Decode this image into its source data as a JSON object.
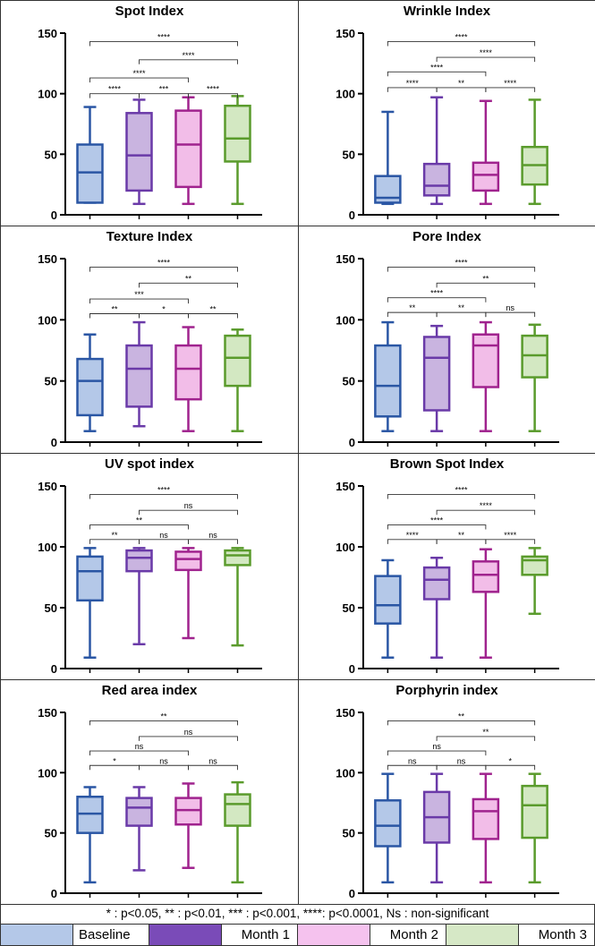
{
  "colors": {
    "baseline": {
      "stroke": "#2a56a4",
      "fill": "#b4c8e8"
    },
    "month1": {
      "stroke": "#6a3aa8",
      "fill": "#c9b4e0"
    },
    "month2": {
      "stroke": "#a0238e",
      "fill": "#f2bde8"
    },
    "month3": {
      "stroke": "#5a9b2c",
      "fill": "#d3e8c2"
    }
  },
  "chart_data": [
    {
      "type": "box",
      "title": "Spot Index",
      "ylim": [
        0,
        150
      ],
      "yticks": [
        0,
        50,
        100,
        150
      ],
      "groups": [
        "Baseline",
        "Month 1",
        "Month 2",
        "Month 3"
      ],
      "boxes": [
        {
          "min": 10,
          "q1": 10,
          "median": 35,
          "q3": 58,
          "max": 89
        },
        {
          "min": 9,
          "q1": 20,
          "median": 49,
          "q3": 84,
          "max": 95
        },
        {
          "min": 9,
          "q1": 23,
          "median": 58,
          "q3": 86,
          "max": 97
        },
        {
          "min": 9,
          "q1": 44,
          "median": 63,
          "q3": 90,
          "max": 98
        }
      ],
      "comparisons": [
        {
          "a": 0,
          "b": 3,
          "y": 143,
          "label": "****"
        },
        {
          "a": 1,
          "b": 3,
          "y": 128,
          "label": "****"
        },
        {
          "a": 0,
          "b": 2,
          "y": 113,
          "label": "****"
        },
        {
          "a": 0,
          "b": 1,
          "y": 100,
          "label": "****"
        },
        {
          "a": 1,
          "b": 2,
          "y": 100,
          "label": "***"
        },
        {
          "a": 2,
          "b": 3,
          "y": 100,
          "label": "****"
        }
      ]
    },
    {
      "type": "box",
      "title": "Wrinkle Index",
      "ylim": [
        0,
        150
      ],
      "yticks": [
        0,
        50,
        100,
        150
      ],
      "groups": [
        "Baseline",
        "Month 1",
        "Month 2",
        "Month 3"
      ],
      "boxes": [
        {
          "min": 9,
          "q1": 10,
          "median": 14,
          "q3": 32,
          "max": 85
        },
        {
          "min": 9,
          "q1": 16,
          "median": 24,
          "q3": 42,
          "max": 97
        },
        {
          "min": 9,
          "q1": 20,
          "median": 33,
          "q3": 43,
          "max": 94
        },
        {
          "min": 9,
          "q1": 25,
          "median": 41,
          "q3": 56,
          "max": 95
        }
      ],
      "comparisons": [
        {
          "a": 0,
          "b": 3,
          "y": 143,
          "label": "****"
        },
        {
          "a": 1,
          "b": 3,
          "y": 130,
          "label": "****"
        },
        {
          "a": 0,
          "b": 2,
          "y": 118,
          "label": "****"
        },
        {
          "a": 0,
          "b": 1,
          "y": 105,
          "label": "****"
        },
        {
          "a": 1,
          "b": 2,
          "y": 105,
          "label": "**"
        },
        {
          "a": 2,
          "b": 3,
          "y": 105,
          "label": "****"
        }
      ]
    },
    {
      "type": "box",
      "title": "Texture Index",
      "ylim": [
        0,
        150
      ],
      "yticks": [
        0,
        50,
        100,
        150
      ],
      "groups": [
        "Baseline",
        "Month 1",
        "Month 2",
        "Month 3"
      ],
      "boxes": [
        {
          "min": 9,
          "q1": 22,
          "median": 50,
          "q3": 68,
          "max": 88
        },
        {
          "min": 13,
          "q1": 29,
          "median": 60,
          "q3": 79,
          "max": 98
        },
        {
          "min": 9,
          "q1": 35,
          "median": 60,
          "q3": 79,
          "max": 94
        },
        {
          "min": 9,
          "q1": 46,
          "median": 69,
          "q3": 87,
          "max": 92
        }
      ],
      "comparisons": [
        {
          "a": 0,
          "b": 3,
          "y": 143,
          "label": "****"
        },
        {
          "a": 1,
          "b": 3,
          "y": 130,
          "label": "**"
        },
        {
          "a": 0,
          "b": 2,
          "y": 117,
          "label": "***"
        },
        {
          "a": 0,
          "b": 1,
          "y": 105,
          "label": "**"
        },
        {
          "a": 1,
          "b": 2,
          "y": 105,
          "label": "*"
        },
        {
          "a": 2,
          "b": 3,
          "y": 105,
          "label": "**"
        }
      ]
    },
    {
      "type": "box",
      "title": "Pore Index",
      "ylim": [
        0,
        150
      ],
      "yticks": [
        0,
        50,
        100,
        150
      ],
      "groups": [
        "Baseline",
        "Month 1",
        "Month 2",
        "Month 3"
      ],
      "boxes": [
        {
          "min": 9,
          "q1": 21,
          "median": 46,
          "q3": 79,
          "max": 98
        },
        {
          "min": 9,
          "q1": 26,
          "median": 69,
          "q3": 86,
          "max": 95
        },
        {
          "min": 9,
          "q1": 45,
          "median": 79,
          "q3": 88,
          "max": 98
        },
        {
          "min": 9,
          "q1": 53,
          "median": 71,
          "q3": 87,
          "max": 96
        }
      ],
      "comparisons": [
        {
          "a": 0,
          "b": 3,
          "y": 143,
          "label": "****"
        },
        {
          "a": 1,
          "b": 3,
          "y": 130,
          "label": "**"
        },
        {
          "a": 0,
          "b": 2,
          "y": 118,
          "label": "****"
        },
        {
          "a": 0,
          "b": 1,
          "y": 106,
          "label": "**"
        },
        {
          "a": 1,
          "b": 2,
          "y": 106,
          "label": "**"
        },
        {
          "a": 2,
          "b": 3,
          "y": 106,
          "label": "ns"
        }
      ]
    },
    {
      "type": "box",
      "title": "UV spot index",
      "ylim": [
        0,
        150
      ],
      "yticks": [
        0,
        50,
        100,
        150
      ],
      "groups": [
        "Baseline",
        "Month 1",
        "Month 2",
        "Month 3"
      ],
      "boxes": [
        {
          "min": 9,
          "q1": 56,
          "median": 80,
          "q3": 92,
          "max": 99
        },
        {
          "min": 20,
          "q1": 80,
          "median": 91,
          "q3": 97,
          "max": 99
        },
        {
          "min": 25,
          "q1": 81,
          "median": 90,
          "q3": 96,
          "max": 99
        },
        {
          "min": 19,
          "q1": 85,
          "median": 93,
          "q3": 97,
          "max": 99
        }
      ],
      "comparisons": [
        {
          "a": 0,
          "b": 3,
          "y": 143,
          "label": "****"
        },
        {
          "a": 1,
          "b": 3,
          "y": 130,
          "label": "ns"
        },
        {
          "a": 0,
          "b": 2,
          "y": 118,
          "label": "**"
        },
        {
          "a": 0,
          "b": 1,
          "y": 106,
          "label": "**"
        },
        {
          "a": 1,
          "b": 2,
          "y": 106,
          "label": "ns"
        },
        {
          "a": 2,
          "b": 3,
          "y": 106,
          "label": "ns"
        }
      ]
    },
    {
      "type": "box",
      "title": "Brown Spot Index",
      "ylim": [
        0,
        150
      ],
      "yticks": [
        0,
        50,
        100,
        150
      ],
      "groups": [
        "Baseline",
        "Month 1",
        "Month 2",
        "Month 3"
      ],
      "boxes": [
        {
          "min": 9,
          "q1": 37,
          "median": 52,
          "q3": 76,
          "max": 89
        },
        {
          "min": 9,
          "q1": 57,
          "median": 73,
          "q3": 83,
          "max": 91
        },
        {
          "min": 9,
          "q1": 63,
          "median": 77,
          "q3": 88,
          "max": 98
        },
        {
          "min": 45,
          "q1": 77,
          "median": 89,
          "q3": 92,
          "max": 99
        }
      ],
      "comparisons": [
        {
          "a": 0,
          "b": 3,
          "y": 143,
          "label": "****"
        },
        {
          "a": 1,
          "b": 3,
          "y": 130,
          "label": "****"
        },
        {
          "a": 0,
          "b": 2,
          "y": 118,
          "label": "****"
        },
        {
          "a": 0,
          "b": 1,
          "y": 106,
          "label": "****"
        },
        {
          "a": 1,
          "b": 2,
          "y": 106,
          "label": "**"
        },
        {
          "a": 2,
          "b": 3,
          "y": 106,
          "label": "****"
        }
      ]
    },
    {
      "type": "box",
      "title": "Red area index",
      "ylim": [
        0,
        150
      ],
      "yticks": [
        0,
        50,
        100,
        150
      ],
      "groups": [
        "Baseline",
        "Month 1",
        "Month 2",
        "Month 3"
      ],
      "boxes": [
        {
          "min": 9,
          "q1": 50,
          "median": 66,
          "q3": 80,
          "max": 88
        },
        {
          "min": 19,
          "q1": 56,
          "median": 71,
          "q3": 79,
          "max": 88
        },
        {
          "min": 21,
          "q1": 57,
          "median": 69,
          "q3": 79,
          "max": 91
        },
        {
          "min": 9,
          "q1": 56,
          "median": 74,
          "q3": 82,
          "max": 92
        }
      ],
      "comparisons": [
        {
          "a": 0,
          "b": 3,
          "y": 143,
          "label": "**"
        },
        {
          "a": 1,
          "b": 3,
          "y": 130,
          "label": "ns"
        },
        {
          "a": 0,
          "b": 2,
          "y": 118,
          "label": "ns"
        },
        {
          "a": 0,
          "b": 1,
          "y": 106,
          "label": "*"
        },
        {
          "a": 1,
          "b": 2,
          "y": 106,
          "label": "ns"
        },
        {
          "a": 2,
          "b": 3,
          "y": 106,
          "label": "ns"
        }
      ]
    },
    {
      "type": "box",
      "title": "Porphyrin index",
      "ylim": [
        0,
        150
      ],
      "yticks": [
        0,
        50,
        100,
        150
      ],
      "groups": [
        "Baseline",
        "Month 1",
        "Month 2",
        "Month 3"
      ],
      "boxes": [
        {
          "min": 9,
          "q1": 39,
          "median": 56,
          "q3": 77,
          "max": 99
        },
        {
          "min": 9,
          "q1": 42,
          "median": 63,
          "q3": 84,
          "max": 99
        },
        {
          "min": 9,
          "q1": 45,
          "median": 68,
          "q3": 78,
          "max": 99
        },
        {
          "min": 9,
          "q1": 46,
          "median": 73,
          "q3": 89,
          "max": 99
        }
      ],
      "comparisons": [
        {
          "a": 0,
          "b": 3,
          "y": 143,
          "label": "**"
        },
        {
          "a": 1,
          "b": 3,
          "y": 130,
          "label": "**"
        },
        {
          "a": 0,
          "b": 2,
          "y": 118,
          "label": "ns"
        },
        {
          "a": 0,
          "b": 1,
          "y": 106,
          "label": "ns"
        },
        {
          "a": 1,
          "b": 2,
          "y": 106,
          "label": "ns"
        },
        {
          "a": 2,
          "b": 3,
          "y": 106,
          "label": "*"
        }
      ]
    }
  ],
  "footnote": "* : p<0.05, **  : p<0.01, *** : p<0.001, ****: p<0.0001, Ns : non-significant",
  "legend": [
    {
      "label": "Baseline"
    },
    {
      "label": "Month 1"
    },
    {
      "label": "Month 2"
    },
    {
      "label": "Month 3"
    }
  ]
}
